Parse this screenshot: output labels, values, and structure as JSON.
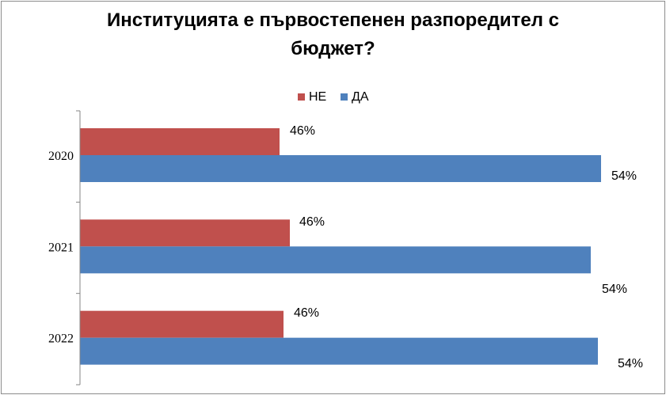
{
  "chart_data": {
    "type": "bar",
    "orientation": "horizontal",
    "title_lines": [
      "Институцията е първостепенен разпоредител с",
      "бюджет?"
    ],
    "categories": [
      "2020",
      "2021",
      "2022"
    ],
    "series": [
      {
        "name": "НЕ",
        "color": "#c0504d",
        "values": [
          0.46,
          0.46,
          0.46
        ],
        "labels": [
          "46%",
          "46%",
          "46%"
        ]
      },
      {
        "name": "ДА",
        "color": "#4f81bd",
        "values": [
          0.54,
          0.54,
          0.54
        ],
        "labels": [
          "54%",
          "54%",
          "54%"
        ]
      }
    ],
    "legend_position": "top",
    "xlim": [
      0,
      1
    ],
    "grid": false
  }
}
